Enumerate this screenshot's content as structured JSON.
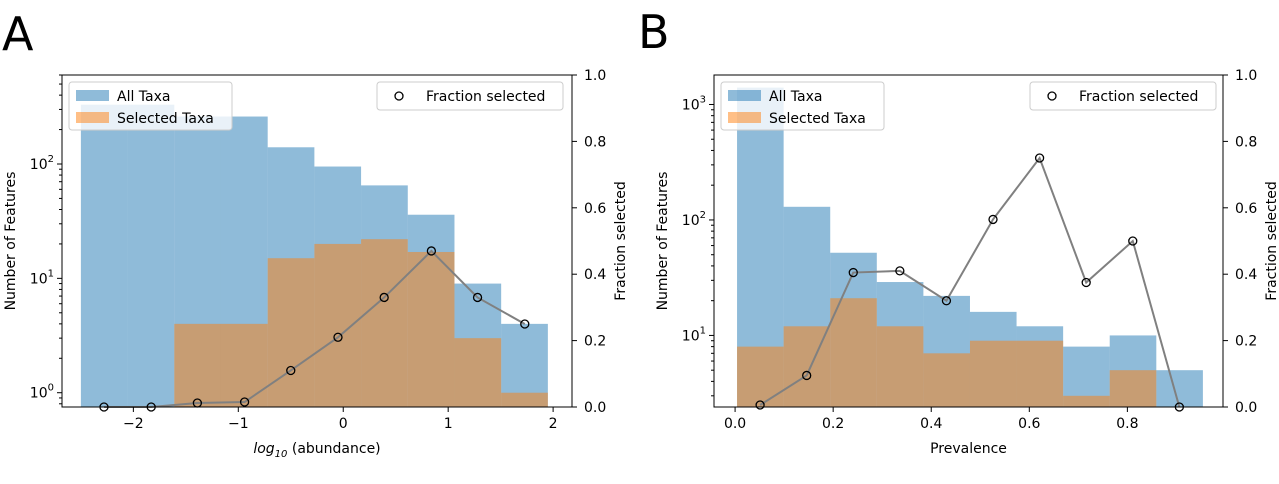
{
  "chart_data": [
    {
      "panel_label": "A",
      "type": "bar",
      "xlabel": "log10 (abundance)",
      "ylabel": "Number of Features",
      "ylabel_right": "Fraction selected",
      "x_ticks": [
        "-2",
        "-1",
        "0",
        "1",
        "2"
      ],
      "y_ticks": [
        "10^0",
        "10^1",
        "10^2"
      ],
      "y_right_ticks": [
        "0.0",
        "0.2",
        "0.4",
        "0.6",
        "0.8",
        "1.0"
      ],
      "xlim": [
        -2.68,
        2.18
      ],
      "ylim_log": [
        0.75,
        600
      ],
      "y_scale": "log",
      "y_right_lim": [
        0,
        1
      ],
      "legend_left": [
        "All Taxa",
        "Selected Taxa"
      ],
      "legend_right": [
        "Fraction selected"
      ],
      "bin_edges": [
        -2.5,
        -2.055,
        -1.61,
        -1.165,
        -0.72,
        -0.275,
        0.17,
        0.615,
        1.06,
        1.505,
        1.95
      ],
      "series": [
        {
          "name": "All Taxa",
          "color": "#1f77b4",
          "values": [
            330,
            330,
            260,
            260,
            140,
            95,
            65,
            36,
            9,
            4
          ]
        },
        {
          "name": "Selected Taxa",
          "color": "#ff7f0e",
          "values": [
            0,
            0,
            4,
            4,
            15,
            20,
            22,
            17,
            3,
            1
          ]
        },
        {
          "name": "Fraction selected",
          "color": "#808080",
          "x": [
            -2.28,
            -1.83,
            -1.39,
            -0.94,
            -0.5,
            -0.05,
            0.39,
            0.84,
            1.28,
            1.73
          ],
          "values": [
            0.0,
            0.0,
            0.012,
            0.015,
            0.11,
            0.21,
            0.33,
            0.47,
            0.33,
            0.25
          ]
        }
      ]
    },
    {
      "panel_label": "B",
      "type": "bar",
      "xlabel": "Prevalence",
      "ylabel": "Number of Features",
      "ylabel_right": "Fraction selected",
      "x_ticks": [
        "0.0",
        "0.2",
        "0.4",
        "0.6",
        "0.8"
      ],
      "y_ticks": [
        "10^1",
        "10^2",
        "10^3"
      ],
      "y_right_ticks": [
        "0.0",
        "0.2",
        "0.4",
        "0.6",
        "0.8",
        "1.0"
      ],
      "xlim": [
        -0.043,
        0.995
      ],
      "ylim_log": [
        2.4,
        1800
      ],
      "y_scale": "log",
      "y_right_lim": [
        0,
        1
      ],
      "legend_left": [
        "All Taxa",
        "Selected Taxa"
      ],
      "legend_right": [
        "Fraction selected"
      ],
      "bin_edges": [
        0.004,
        0.099,
        0.194,
        0.289,
        0.384,
        0.479,
        0.574,
        0.669,
        0.764,
        0.859,
        0.954
      ],
      "series": [
        {
          "name": "All Taxa",
          "color": "#1f77b4",
          "values": [
            1400,
            130,
            52,
            29,
            22,
            16,
            12,
            8,
            10,
            5
          ]
        },
        {
          "name": "Selected Taxa",
          "color": "#ff7f0e",
          "values": [
            8,
            12,
            21,
            12,
            7,
            9,
            9,
            3,
            5,
            0
          ]
        },
        {
          "name": "Fraction selected",
          "color": "#808080",
          "x": [
            0.051,
            0.146,
            0.241,
            0.336,
            0.431,
            0.526,
            0.621,
            0.716,
            0.811,
            0.906
          ],
          "values": [
            0.006,
            0.095,
            0.405,
            0.41,
            0.32,
            0.565,
            0.75,
            0.375,
            0.5,
            0.0
          ]
        }
      ]
    }
  ]
}
